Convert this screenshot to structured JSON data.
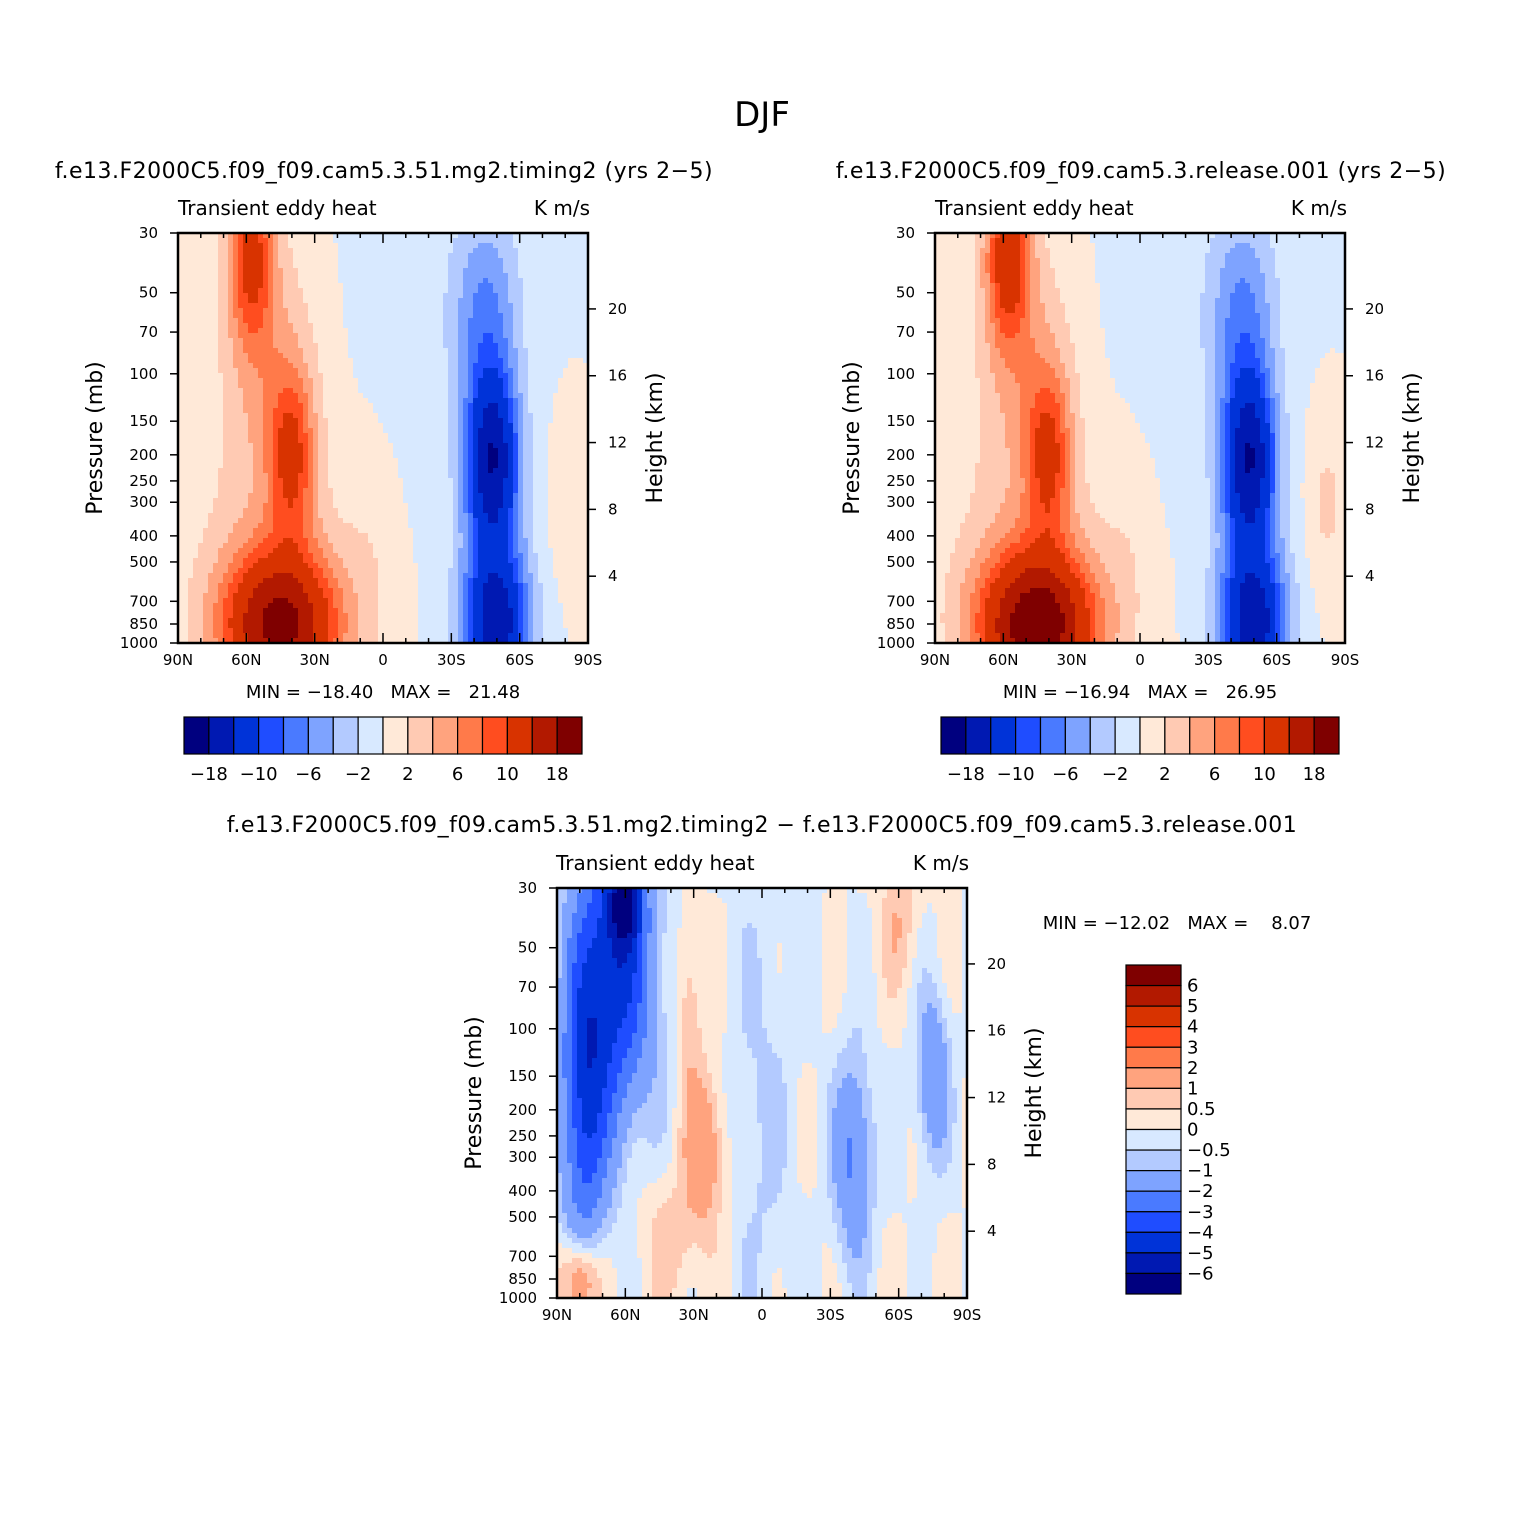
{
  "figure": {
    "title": "DJF",
    "panels": [
      {
        "title": "f.e13.F2000C5.f09_f09.cam5.3.51.mg2.timing2 (yrs 2−5)",
        "left_label": "Transient eddy heat",
        "right_label": "K m/s",
        "stats": "MIN = −18.40   MAX =   21.48",
        "variant": 0
      },
      {
        "title": "f.e13.F2000C5.f09_f09.cam5.3.release.001 (yrs 2−5)",
        "left_label": "Transient eddy heat",
        "right_label": "K m/s",
        "stats": "MIN = −16.94   MAX =   26.95",
        "variant": 1
      },
      {
        "title": "f.e13.F2000C5.f09_f09.cam5.3.51.mg2.timing2 − f.e13.F2000C5.f09_f09.cam5.3.release.001",
        "left_label": "Transient eddy heat",
        "right_label": "K m/s",
        "stats": "MIN = −12.02   MAX =    8.07",
        "variant": 2
      }
    ],
    "axes": {
      "xlabel": "",
      "ylabel_left": "Pressure (mb)",
      "ylabel_right": "Height (km)",
      "x_ticks": [
        "90N",
        "60N",
        "30N",
        "0",
        "30S",
        "60S",
        "90S"
      ],
      "pressure_ticks": [
        "30",
        "50",
        "70",
        "100",
        "150",
        "200",
        "250",
        "300",
        "400",
        "500",
        "700",
        "850",
        "1000"
      ],
      "height_ticks": [
        "20",
        "16",
        "12",
        "8",
        "4"
      ]
    },
    "colorbar_main": {
      "colors": [
        "#00007f",
        "#0019b2",
        "#0033d8",
        "#1f4dff",
        "#4a7aff",
        "#7ea3ff",
        "#b3caff",
        "#d8e9ff",
        "#ffe9d8",
        "#ffcab3",
        "#ffa37e",
        "#ff7a4a",
        "#ff4d1f",
        "#d83300",
        "#b21900",
        "#7f0000"
      ],
      "tick_labels": [
        "−18",
        "−10",
        "−6",
        "−2",
        "2",
        "6",
        "10",
        "18"
      ]
    },
    "colorbar_diff": {
      "colors": [
        "#7f0000",
        "#b21900",
        "#d83300",
        "#ff4d1f",
        "#ff7a4a",
        "#ffa37e",
        "#ffcab3",
        "#ffe9d8",
        "#d8e9ff",
        "#b3caff",
        "#7ea3ff",
        "#4a7aff",
        "#1f4dff",
        "#0033d8",
        "#0019b2",
        "#00007f"
      ],
      "tick_labels": [
        "6",
        "5",
        "4",
        "3",
        "2",
        "1",
        "0.5",
        "0",
        "−0.5",
        "−1",
        "−2",
        "−3",
        "−4",
        "−5",
        "−6"
      ]
    }
  },
  "chart_data": [
    {
      "type": "heatmap",
      "title": "f.e13.F2000C5.f09_f09.cam5.3.51.mg2.timing2 (yrs 2−5)",
      "ylabel": "Pressure (mb)",
      "y2label": "Height (km)",
      "xlim": [
        90,
        -90
      ],
      "ylim": [
        1000,
        30
      ],
      "y_scale": "log",
      "y2_ticks": [
        20,
        16,
        12,
        8,
        4
      ],
      "min": -18.4,
      "max": 21.48,
      "levels": [
        -18,
        -14,
        -10,
        -8,
        -6,
        -4,
        -2,
        0,
        2,
        4,
        6,
        8,
        10,
        14,
        18
      ],
      "features": [
        {
          "lat": 43,
          "pressure": 900,
          "value": 21
        },
        {
          "lat": 40,
          "pressure": 200,
          "value": 9
        },
        {
          "lat": 58,
          "pressure": 30,
          "value": 10
        },
        {
          "lat": -48,
          "pressure": 200,
          "value": -18
        },
        {
          "lat": -50,
          "pressure": 880,
          "value": -16
        }
      ]
    },
    {
      "type": "heatmap",
      "title": "f.e13.F2000C5.f09_f09.cam5.3.release.001 (yrs 2−5)",
      "ylabel": "Pressure (mb)",
      "y2label": "Height (km)",
      "xlim": [
        90,
        -90
      ],
      "ylim": [
        1000,
        30
      ],
      "y_scale": "log",
      "y2_ticks": [
        20,
        16,
        12,
        8,
        4
      ],
      "min": -16.94,
      "max": 26.95,
      "levels": [
        -18,
        -14,
        -10,
        -8,
        -6,
        -4,
        -2,
        0,
        2,
        4,
        6,
        8,
        10,
        14,
        18
      ],
      "features": [
        {
          "lat": 43,
          "pressure": 900,
          "value": 26
        },
        {
          "lat": 37,
          "pressure": 200,
          "value": 10
        },
        {
          "lat": 60,
          "pressure": 30,
          "value": 16
        },
        {
          "lat": -50,
          "pressure": 200,
          "value": -16
        },
        {
          "lat": -52,
          "pressure": 880,
          "value": -15
        }
      ]
    },
    {
      "type": "heatmap",
      "title": "f.e13.F2000C5.f09_f09.cam5.3.51.mg2.timing2 − f.e13.F2000C5.f09_f09.cam5.3.release.001",
      "ylabel": "Pressure (mb)",
      "y2label": "Height (km)",
      "xlim": [
        90,
        -90
      ],
      "ylim": [
        1000,
        30
      ],
      "y_scale": "log",
      "y2_ticks": [
        20,
        16,
        12,
        8,
        4
      ],
      "min": -12.02,
      "max": 8.07,
      "levels": [
        -6,
        -5,
        -4,
        -3,
        -2,
        -1,
        -0.5,
        0,
        0.5,
        1,
        2,
        3,
        4,
        5,
        6
      ],
      "features": [
        {
          "lat": 60,
          "pressure": 35,
          "value": -8
        },
        {
          "lat": 80,
          "pressure": 120,
          "value": -4
        },
        {
          "lat": 25,
          "pressure": 280,
          "value": 2
        },
        {
          "lat": -40,
          "pressure": 300,
          "value": -2
        },
        {
          "lat": -75,
          "pressure": 150,
          "value": -2
        },
        {
          "lat": 80,
          "pressure": 850,
          "value": 2
        }
      ]
    }
  ]
}
